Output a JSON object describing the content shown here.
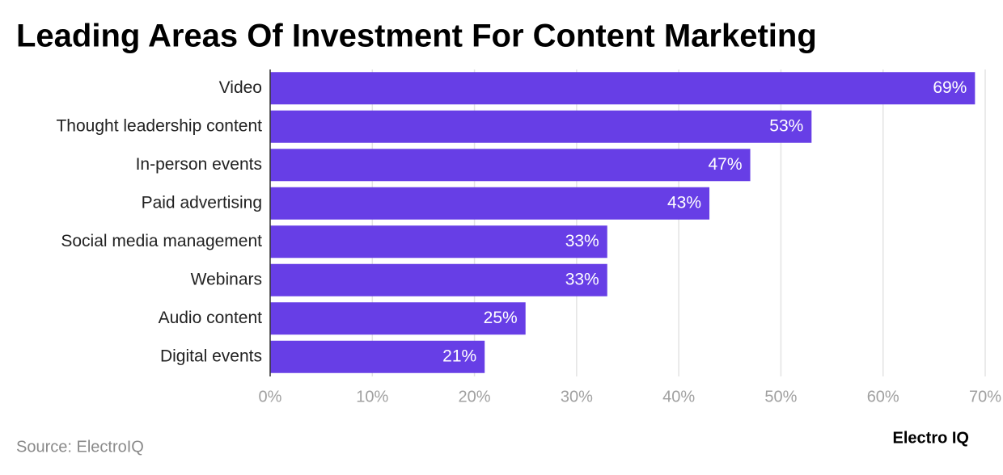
{
  "chart_data": {
    "type": "bar",
    "orientation": "horizontal",
    "title": "Leading Areas Of Investment For Content Marketing",
    "categories": [
      "Video",
      "Thought leadership content",
      "In-person events",
      "Paid advertising",
      "Social media management",
      "Webinars",
      "Audio content",
      "Digital events"
    ],
    "values": [
      69,
      53,
      47,
      43,
      33,
      33,
      25,
      21
    ],
    "value_labels": [
      "69%",
      "53%",
      "47%",
      "43%",
      "33%",
      "33%",
      "25%",
      "21%"
    ],
    "color": "#673ee6",
    "xlim": [
      0,
      70
    ],
    "xticks": [
      {
        "value": 0,
        "label": "0%"
      },
      {
        "value": 10,
        "label": "10%"
      },
      {
        "value": 20,
        "label": "20%"
      },
      {
        "value": 30,
        "label": "30%"
      },
      {
        "value": 40,
        "label": "40%"
      },
      {
        "value": 50,
        "label": "50%"
      },
      {
        "value": 60,
        "label": "60%"
      },
      {
        "value": 70,
        "label": "70%"
      }
    ],
    "grid": true,
    "source": "Source: ElectroIQ",
    "logo": "Electro IQ"
  }
}
